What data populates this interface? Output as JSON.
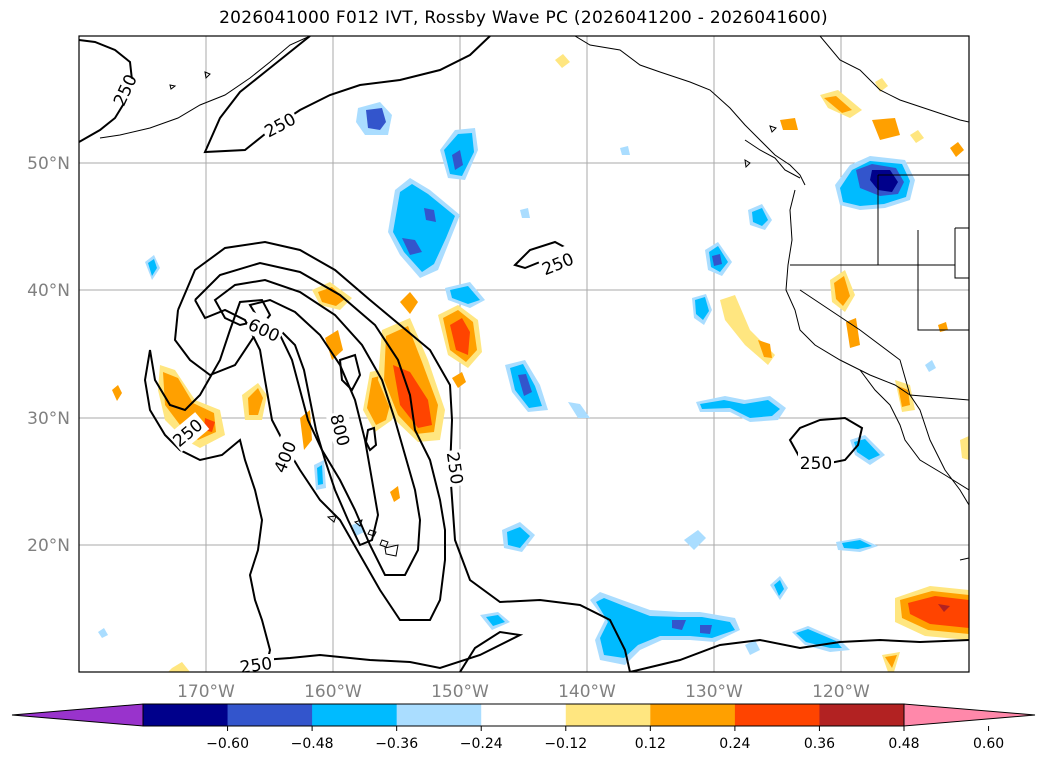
{
  "title": "2026041000 F012 IVT, Rossby Wave PC (2026041200 - 2026041600)",
  "map": {
    "projection": "equirectangular",
    "lon_range": [
      180,
      110
    ],
    "lat_range": [
      10,
      60
    ],
    "lon_labels": [
      "170°W",
      "160°W",
      "150°W",
      "140°W",
      "130°W",
      "120°W"
    ],
    "lat_labels": [
      "50°N",
      "40°N",
      "30°N",
      "20°N"
    ]
  },
  "ivt_contours": {
    "labels": [
      "250",
      "250",
      "250",
      "250",
      "250",
      "250",
      "250",
      "400",
      "600",
      "800"
    ]
  },
  "colorbar": {
    "ticks": [
      "−0.60",
      "−0.48",
      "−0.36",
      "−0.24",
      "−0.12",
      "0.12",
      "0.24",
      "0.36",
      "0.48",
      "0.60"
    ],
    "colors": [
      "#9933cc",
      "#00008b",
      "#3355cc",
      "#00bbff",
      "#aaddff",
      "#ffffff",
      "#ffe680",
      "#ffa000",
      "#ff4400",
      "#b22222",
      "#ff88aa"
    ]
  }
}
